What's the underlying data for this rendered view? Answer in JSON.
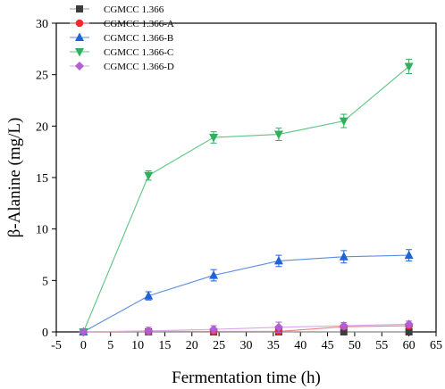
{
  "chart_data": {
    "type": "line",
    "xlabel": "Fermentation time (h)",
    "ylabel": "β-Alanine (mg/L)",
    "xlim": [
      -5,
      65
    ],
    "ylim": [
      0,
      30
    ],
    "xticks": [
      -5,
      0,
      5,
      10,
      15,
      20,
      25,
      30,
      35,
      40,
      45,
      50,
      55,
      60,
      65
    ],
    "yticks": [
      0,
      5,
      10,
      15,
      20,
      25,
      30
    ],
    "x": [
      0,
      12,
      24,
      36,
      48,
      60
    ],
    "legend_position": "top-left",
    "grid": false,
    "series": [
      {
        "name": "CGMCC 1.366",
        "marker": "square",
        "color": "#3c3c3c",
        "line_color": "#9a9a9a",
        "values": [
          0,
          0,
          0,
          0,
          0,
          0
        ],
        "errors": [
          0,
          0.1,
          0.1,
          0.1,
          0.1,
          0.1
        ]
      },
      {
        "name": "CGMCC 1.366-A",
        "marker": "circle",
        "color": "#ee2a2a",
        "line_color": "#f08080",
        "values": [
          0,
          0.05,
          0.05,
          0.05,
          0.5,
          0.6
        ],
        "errors": [
          0,
          0.1,
          0.1,
          0.1,
          0.15,
          0.2
        ]
      },
      {
        "name": "CGMCC 1.366-B",
        "marker": "triangle-up",
        "color": "#1f63d6",
        "line_color": "#5b8de0",
        "values": [
          0,
          3.5,
          5.5,
          6.9,
          7.3,
          7.45
        ],
        "errors": [
          0,
          0.4,
          0.55,
          0.55,
          0.6,
          0.55
        ]
      },
      {
        "name": "CGMCC 1.366-C",
        "marker": "triangle-down",
        "color": "#2fb05c",
        "line_color": "#5cc581",
        "values": [
          0,
          15.2,
          18.9,
          19.2,
          20.5,
          25.8
        ],
        "errors": [
          0,
          0.45,
          0.55,
          0.6,
          0.65,
          0.7
        ]
      },
      {
        "name": "CGMCC 1.366-D",
        "marker": "diamond",
        "color": "#b05fd6",
        "line_color": "#d8a8ec",
        "values": [
          0,
          0.1,
          0.25,
          0.45,
          0.6,
          0.75
        ],
        "errors": [
          0,
          0.35,
          0.35,
          0.5,
          0.3,
          0.3
        ]
      }
    ]
  }
}
